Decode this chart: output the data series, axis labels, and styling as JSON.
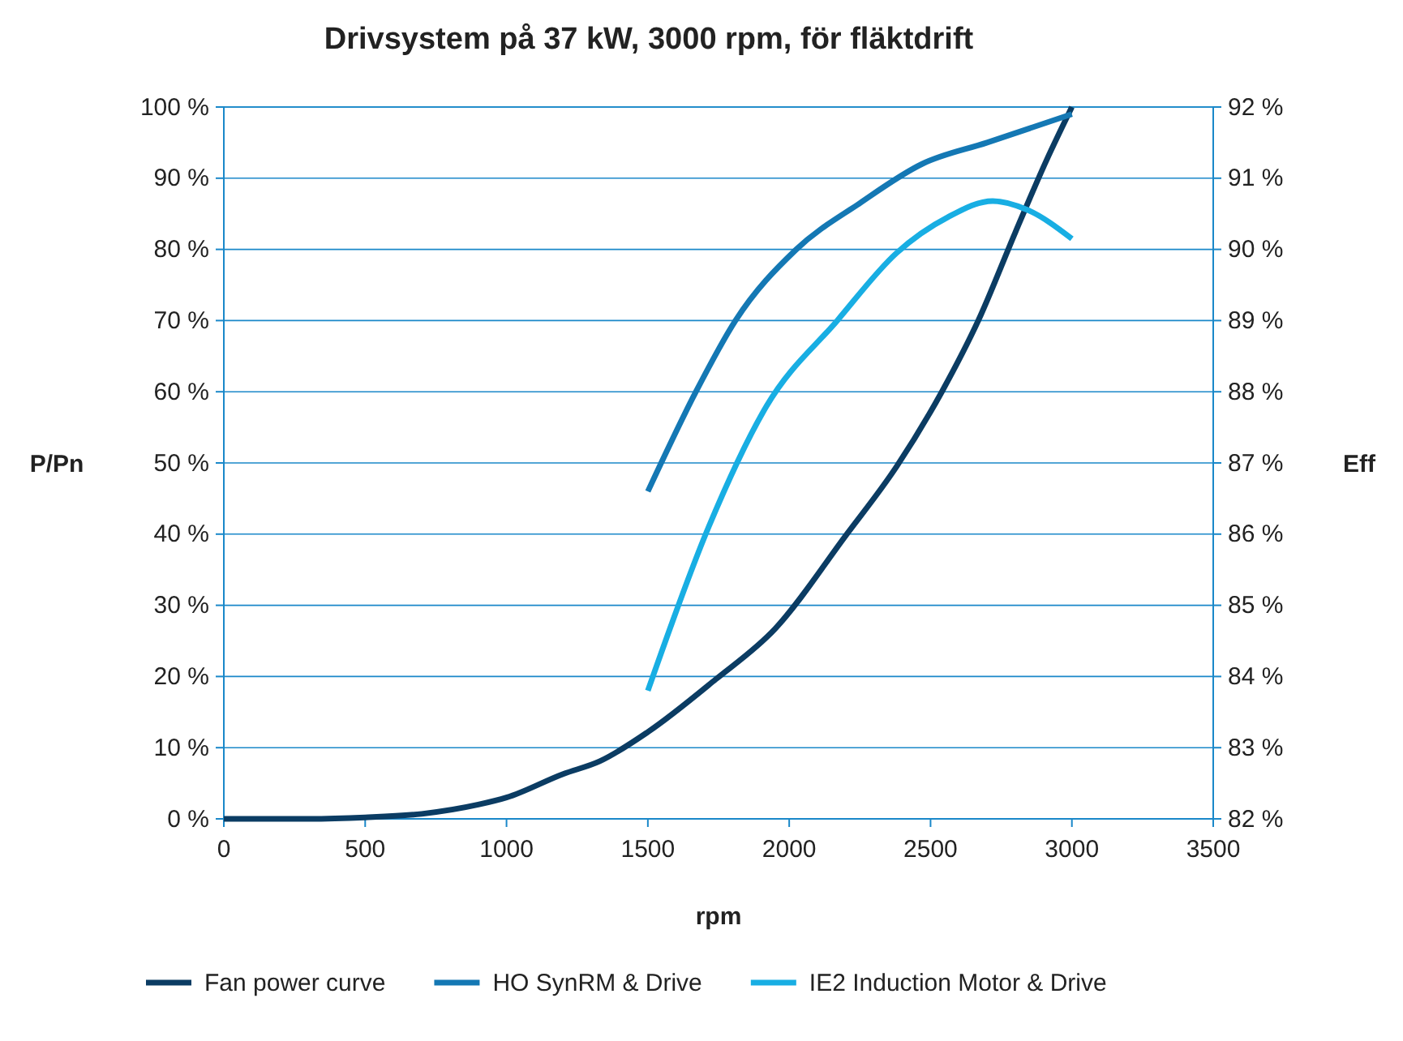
{
  "chart_data": {
    "type": "line",
    "title": "Drivsystem på 37 kW, 3000 rpm, för fläktdrift",
    "xlabel": "rpm",
    "ylabel": "P/Pn",
    "y2label": "Eff",
    "xlim": [
      0,
      3500
    ],
    "xticks": [
      0,
      500,
      1000,
      1500,
      2000,
      2500,
      3000,
      3500
    ],
    "ylim": [
      0,
      100
    ],
    "yticks": [
      {
        "value": 0,
        "label": "0 %"
      },
      {
        "value": 10,
        "label": "10 %"
      },
      {
        "value": 20,
        "label": "20 %"
      },
      {
        "value": 30,
        "label": "30 %"
      },
      {
        "value": 40,
        "label": "40 %"
      },
      {
        "value": 50,
        "label": "50 %"
      },
      {
        "value": 60,
        "label": "60 %"
      },
      {
        "value": 70,
        "label": "70 %"
      },
      {
        "value": 80,
        "label": "80 %"
      },
      {
        "value": 90,
        "label": "90 %"
      },
      {
        "value": 100,
        "label": "100 %"
      }
    ],
    "y2lim": [
      82,
      92
    ],
    "y2ticks": [
      {
        "value": 82,
        "label": "82 %"
      },
      {
        "value": 83,
        "label": "83 %"
      },
      {
        "value": 84,
        "label": "84 %"
      },
      {
        "value": 85,
        "label": "85 %"
      },
      {
        "value": 86,
        "label": "86 %"
      },
      {
        "value": 87,
        "label": "87 %"
      },
      {
        "value": 88,
        "label": "88 %"
      },
      {
        "value": 89,
        "label": "89 %"
      },
      {
        "value": 90,
        "label": "90 %"
      },
      {
        "value": 91,
        "label": "91 %"
      },
      {
        "value": 92,
        "label": "92 %"
      }
    ],
    "grid": "y",
    "legend": "bottom",
    "marker": "none",
    "line_style": "solid",
    "series": [
      {
        "name": "Fan power curve",
        "color": "#0b3c63",
        "x": [
          0,
          300,
          500,
          700,
          900,
          1000,
          1200,
          1330,
          1500,
          1740,
          1950,
          2200,
          2380,
          2540,
          2670,
          2800,
          2910,
          3000
        ],
        "values": [
          0,
          0,
          0.2,
          0.7,
          2,
          3,
          6.3,
          8.1,
          12.2,
          19.6,
          26.7,
          39.8,
          49.5,
          60,
          70.1,
          82.4,
          92.5,
          100
        ]
      },
      {
        "name": "HO SynRM & Drive",
        "color": "#1478b4",
        "axis": "y2",
        "x": [
          1500,
          1670,
          1810,
          2025,
          2250,
          2470,
          2700,
          3000
        ],
        "values": [
          86.6,
          88.0,
          89.0,
          90.0,
          90.65,
          91.2,
          91.5,
          91.9
        ]
      },
      {
        "name": "IE2 Induction Motor & Drive",
        "color": "#18aee3",
        "axis": "y2",
        "x": [
          1500,
          1715,
          1920,
          2170,
          2380,
          2560,
          2720,
          2840,
          3000
        ],
        "values": [
          83.8,
          86.1,
          87.8,
          89.0,
          89.95,
          90.45,
          90.68,
          90.56,
          90.15
        ]
      }
    ]
  }
}
